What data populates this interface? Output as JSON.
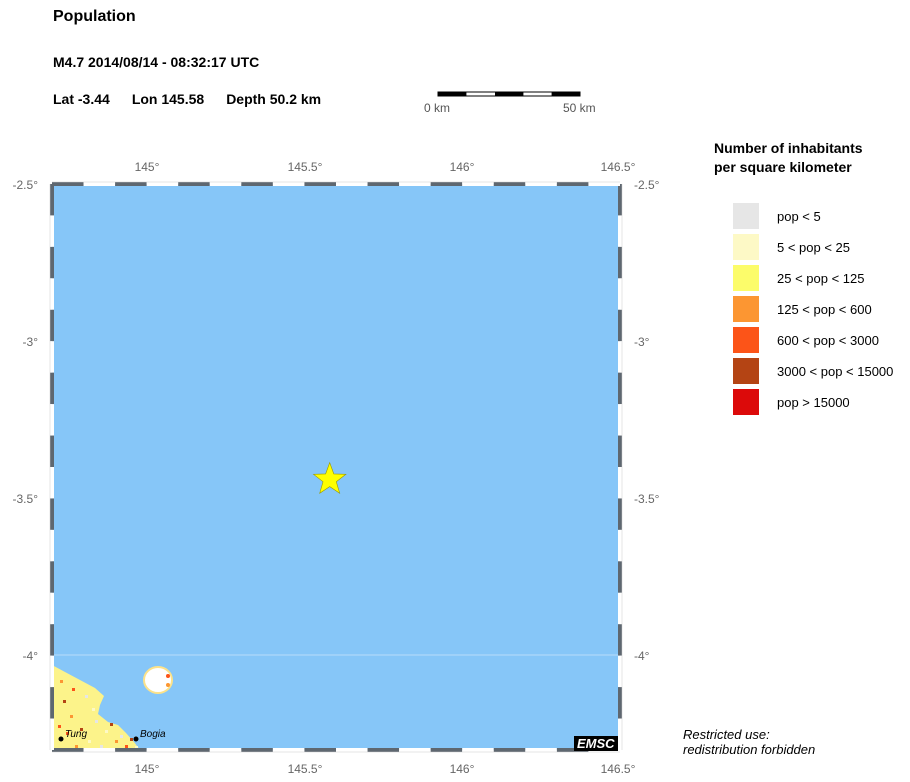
{
  "header": {
    "title": "Population",
    "event": "M4.7  2014/08/14 - 08:32:17 UTC",
    "lat": "Lat -3.44",
    "lon": "Lon 145.58",
    "depth": "Depth  50.2 km"
  },
  "scale_bar": {
    "start": "0 km",
    "end": "50 km"
  },
  "map": {
    "lon_range": [
      144.7,
      146.5
    ],
    "lat_range": [
      -4.3,
      -2.5
    ],
    "lon_ticks": [
      "145°",
      "145.5°",
      "146°",
      "146.5°"
    ],
    "lat_ticks": [
      "-2.5°",
      "-3°",
      "-3.5°",
      "-4°"
    ],
    "epicenter": {
      "lat": -3.44,
      "lon": 145.58
    },
    "places": [
      "Tung",
      "Bogia"
    ],
    "sea_color": "#86c6f8",
    "star_color": "#ffff00"
  },
  "legend": {
    "title_line1": "Number of inhabitants",
    "title_line2": "per square kilometer",
    "items": [
      {
        "label": "pop < 5",
        "color": "#e6e6e6"
      },
      {
        "label": "5 < pop < 25",
        "color": "#fdf9c6"
      },
      {
        "label": "25 < pop < 125",
        "color": "#fcfc6a"
      },
      {
        "label": "125 < pop < 600",
        "color": "#fc9632"
      },
      {
        "label": "600 < pop < 3000",
        "color": "#fc5418"
      },
      {
        "label": "3000 < pop < 15000",
        "color": "#b44414"
      },
      {
        "label": "pop > 15000",
        "color": "#dc0a0a"
      }
    ]
  },
  "footer": {
    "restricted1": "Restricted use:",
    "restricted2": "redistribution forbidden",
    "logo": "EMSC"
  }
}
